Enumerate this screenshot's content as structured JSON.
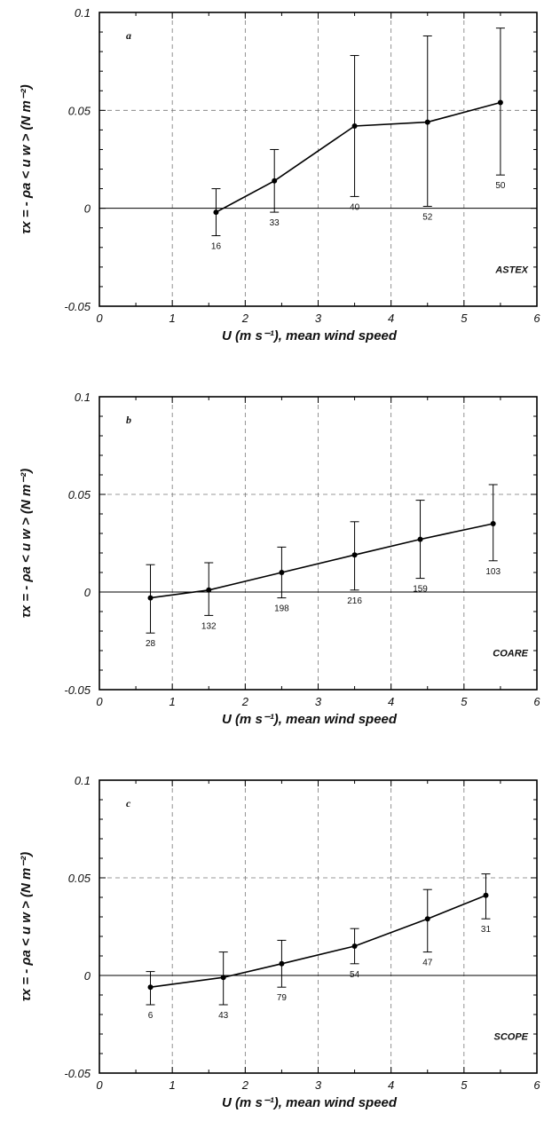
{
  "chart_data": [
    {
      "type": "line",
      "panel_letter": "a",
      "campaign": "ASTEX",
      "xlabel": "U (m s⁻¹),  mean wind speed",
      "ylabel": "τx = - ρa < u w >  (N m⁻²)",
      "xlim": [
        0,
        6
      ],
      "ylim": [
        -0.05,
        0.1
      ],
      "x_ticks": [
        "0",
        "1",
        "2",
        "3",
        "4",
        "5",
        "6"
      ],
      "y_ticks": [
        "-0.05",
        "0",
        "0.05",
        "0.1"
      ],
      "grid": true,
      "points": [
        {
          "x": 1.6,
          "y": -0.002,
          "err_low": -0.014,
          "err_high": 0.01,
          "n": "16"
        },
        {
          "x": 2.4,
          "y": 0.014,
          "err_low": -0.002,
          "err_high": 0.03,
          "n": "33"
        },
        {
          "x": 3.5,
          "y": 0.042,
          "err_low": 0.006,
          "err_high": 0.078,
          "n": "40"
        },
        {
          "x": 4.5,
          "y": 0.044,
          "err_low": 0.001,
          "err_high": 0.088,
          "n": "52"
        },
        {
          "x": 5.5,
          "y": 0.054,
          "err_low": 0.017,
          "err_high": 0.092,
          "n": "50"
        }
      ]
    },
    {
      "type": "line",
      "panel_letter": "b",
      "campaign": "COARE",
      "xlabel": "U (m s⁻¹),  mean wind speed",
      "ylabel": "τx = - ρa < u w >  (N m⁻²)",
      "xlim": [
        0,
        6
      ],
      "ylim": [
        -0.05,
        0.1
      ],
      "x_ticks": [
        "0",
        "1",
        "2",
        "3",
        "4",
        "5",
        "6"
      ],
      "y_ticks": [
        "-0.05",
        "0",
        "0.05",
        "0.1"
      ],
      "grid": true,
      "points": [
        {
          "x": 0.7,
          "y": -0.003,
          "err_low": -0.021,
          "err_high": 0.014,
          "n": "28"
        },
        {
          "x": 1.5,
          "y": 0.001,
          "err_low": -0.012,
          "err_high": 0.015,
          "n": "132"
        },
        {
          "x": 2.5,
          "y": 0.01,
          "err_low": -0.003,
          "err_high": 0.023,
          "n": "198"
        },
        {
          "x": 3.5,
          "y": 0.019,
          "err_low": 0.001,
          "err_high": 0.036,
          "n": "216"
        },
        {
          "x": 4.4,
          "y": 0.027,
          "err_low": 0.007,
          "err_high": 0.047,
          "n": "159"
        },
        {
          "x": 5.4,
          "y": 0.035,
          "err_low": 0.016,
          "err_high": 0.055,
          "n": "103"
        }
      ]
    },
    {
      "type": "line",
      "panel_letter": "c",
      "campaign": "SCOPE",
      "xlabel": "U (m s⁻¹),  mean wind speed",
      "ylabel": "τx = - ρa < u w >  (N m⁻²)",
      "xlim": [
        0,
        6
      ],
      "ylim": [
        -0.05,
        0.1
      ],
      "x_ticks": [
        "0",
        "1",
        "2",
        "3",
        "4",
        "5",
        "6"
      ],
      "y_ticks": [
        "-0.05",
        "0",
        "0.05",
        "0.1"
      ],
      "grid": true,
      "points": [
        {
          "x": 0.7,
          "y": -0.006,
          "err_low": -0.015,
          "err_high": 0.002,
          "n": "6"
        },
        {
          "x": 1.7,
          "y": -0.001,
          "err_low": -0.015,
          "err_high": 0.012,
          "n": "43"
        },
        {
          "x": 2.5,
          "y": 0.006,
          "err_low": -0.006,
          "err_high": 0.018,
          "n": "79"
        },
        {
          "x": 3.5,
          "y": 0.015,
          "err_low": 0.006,
          "err_high": 0.024,
          "n": "54"
        },
        {
          "x": 4.5,
          "y": 0.029,
          "err_low": 0.012,
          "err_high": 0.044,
          "n": "47"
        },
        {
          "x": 5.3,
          "y": 0.041,
          "err_low": 0.029,
          "err_high": 0.052,
          "n": "31"
        }
      ]
    }
  ]
}
